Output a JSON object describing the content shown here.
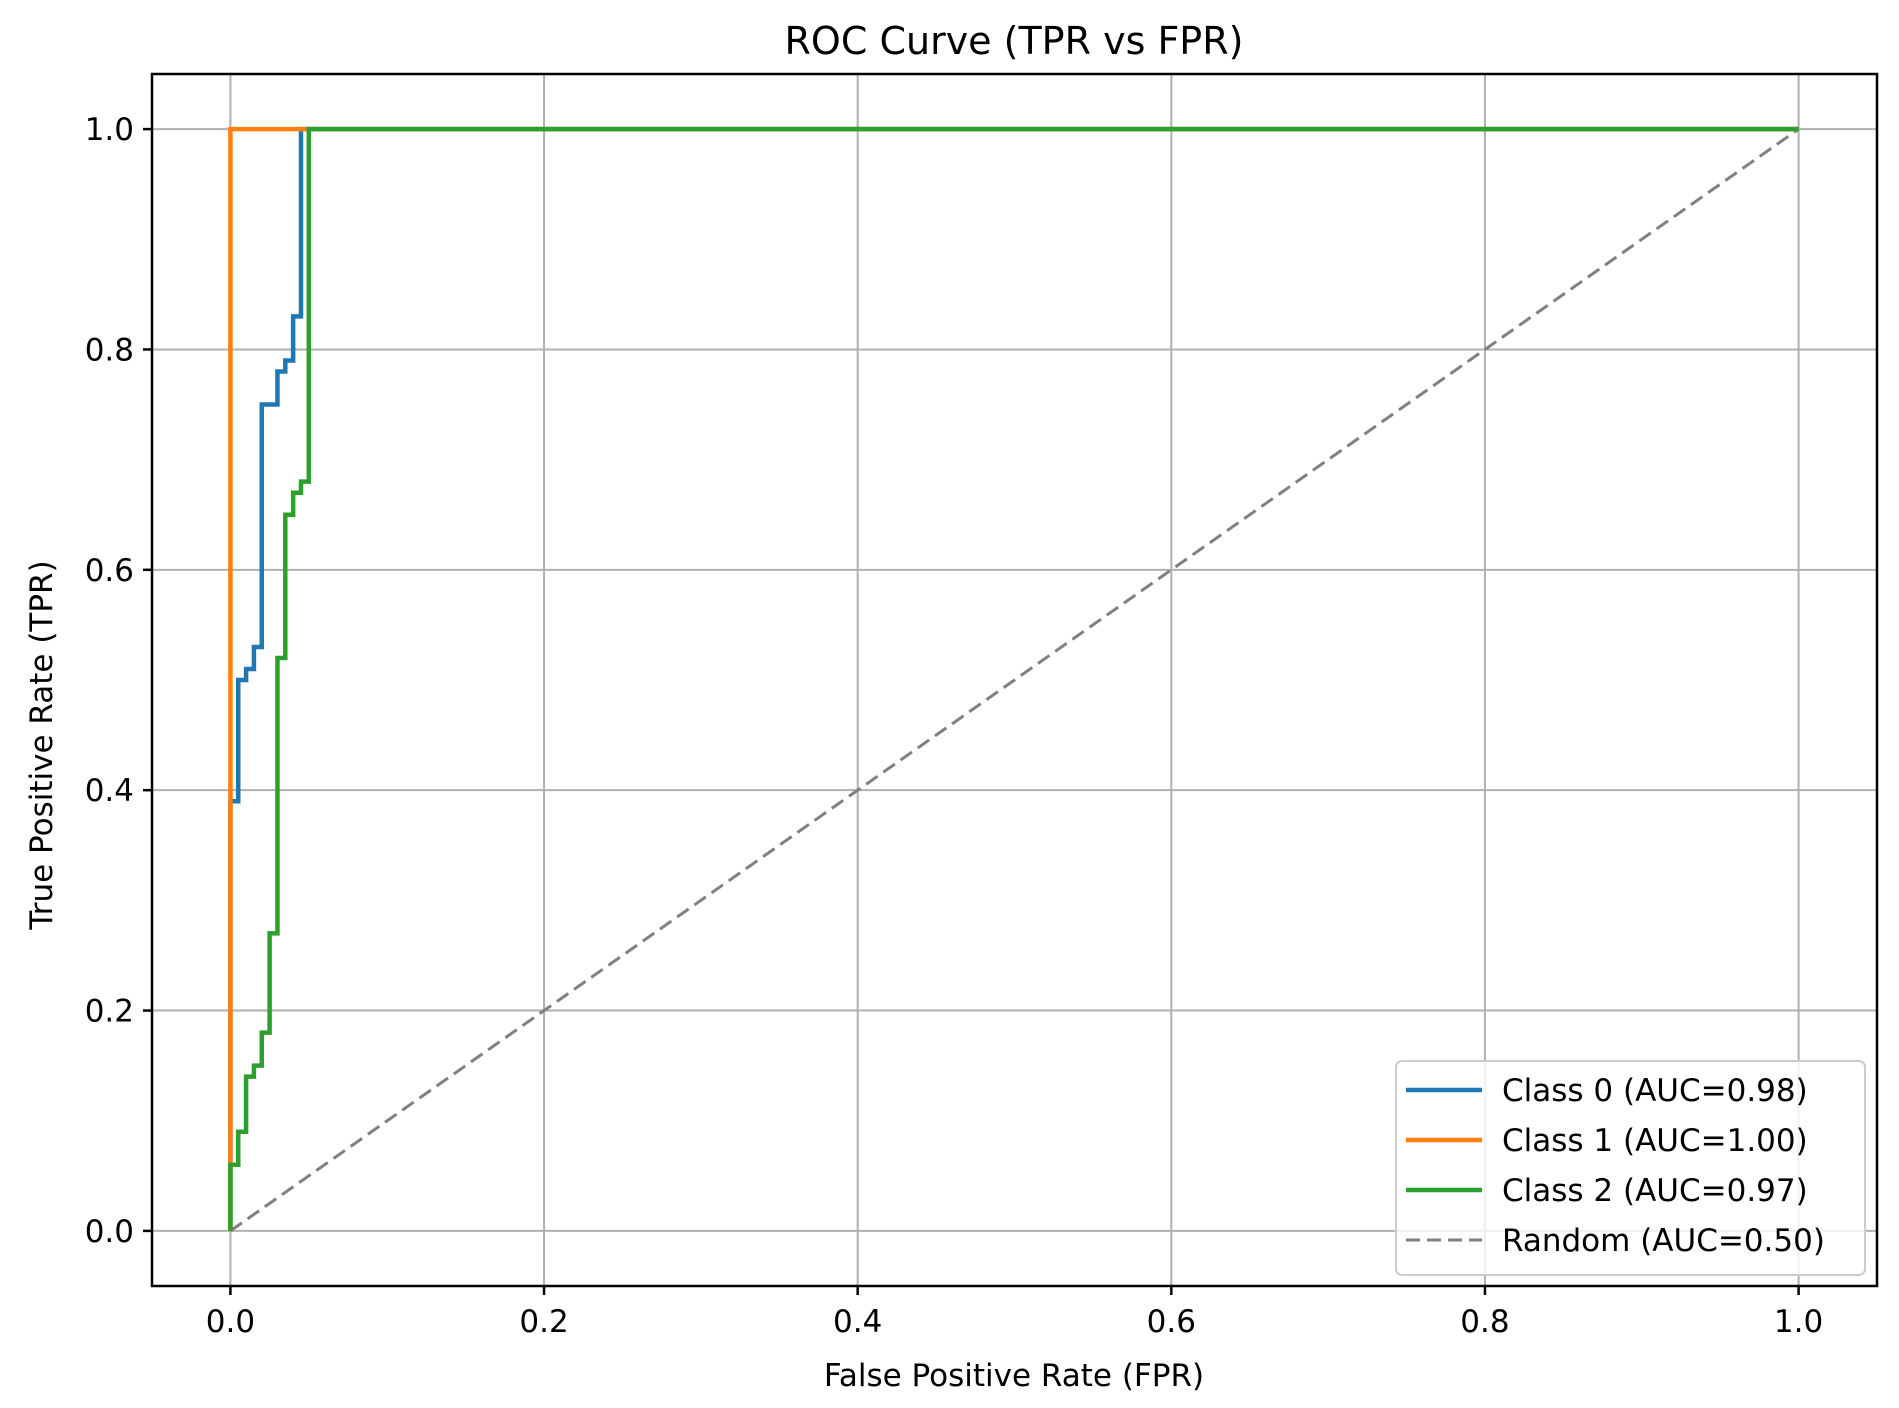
{
  "chart_data": {
    "type": "line",
    "title": "ROC Curve (TPR vs FPR)",
    "xlabel": "False Positive Rate (FPR)",
    "ylabel": "True Positive Rate (TPR)",
    "xlim": [
      -0.05,
      1.05
    ],
    "ylim": [
      -0.05,
      1.05
    ],
    "x_ticks": [
      0.0,
      0.2,
      0.4,
      0.6,
      0.8,
      1.0
    ],
    "x_tick_labels": [
      "0.0",
      "0.2",
      "0.4",
      "0.6",
      "0.8",
      "1.0"
    ],
    "y_ticks": [
      0.0,
      0.2,
      0.4,
      0.6,
      0.8,
      1.0
    ],
    "y_tick_labels": [
      "0.0",
      "0.2",
      "0.4",
      "0.6",
      "0.8",
      "1.0"
    ],
    "grid": true,
    "legend_position": "lower-right",
    "series": [
      {
        "name": "Class 0 (AUC=0.98)",
        "color": "#1f77b4",
        "style": "solid",
        "x": [
          0.0,
          0.0,
          0.005,
          0.005,
          0.01,
          0.01,
          0.015,
          0.015,
          0.02,
          0.02,
          0.03,
          0.03,
          0.035,
          0.035,
          0.04,
          0.04,
          0.045,
          0.045,
          1.0,
          1.0
        ],
        "y": [
          0.0,
          0.39,
          0.39,
          0.5,
          0.5,
          0.51,
          0.51,
          0.53,
          0.53,
          0.75,
          0.75,
          0.78,
          0.78,
          0.79,
          0.79,
          0.83,
          0.83,
          1.0,
          1.0,
          1.0
        ]
      },
      {
        "name": "Class 1 (AUC=1.00)",
        "color": "#ff7f0e",
        "style": "solid",
        "x": [
          0.0,
          0.0,
          0.05,
          1.0
        ],
        "y": [
          0.0,
          1.0,
          1.0,
          1.0
        ]
      },
      {
        "name": "Class 2 (AUC=0.97)",
        "color": "#2ca02c",
        "style": "solid",
        "x": [
          0.0,
          0.0,
          0.005,
          0.005,
          0.01,
          0.01,
          0.015,
          0.015,
          0.02,
          0.02,
          0.025,
          0.025,
          0.03,
          0.03,
          0.035,
          0.035,
          0.04,
          0.04,
          0.045,
          0.045,
          0.05,
          0.05,
          1.0
        ],
        "y": [
          0.0,
          0.06,
          0.06,
          0.09,
          0.09,
          0.14,
          0.14,
          0.15,
          0.15,
          0.18,
          0.18,
          0.27,
          0.27,
          0.52,
          0.52,
          0.65,
          0.65,
          0.67,
          0.67,
          0.68,
          0.68,
          1.0,
          1.0
        ]
      },
      {
        "name": "Random (AUC=0.50)",
        "color": "#808080",
        "style": "dashed",
        "x": [
          0.0,
          1.0
        ],
        "y": [
          0.0,
          1.0
        ]
      }
    ]
  }
}
